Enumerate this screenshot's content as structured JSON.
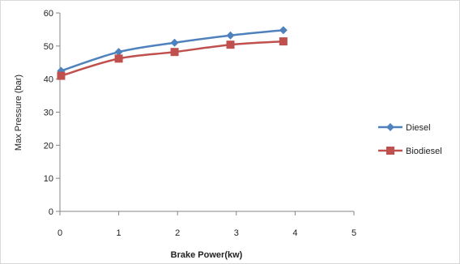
{
  "chart_data": {
    "type": "line",
    "xlabel": "Brake Power(kw)",
    "ylabel": "Max Pressure (bar)",
    "xlim": [
      0,
      5
    ],
    "ylim": [
      0,
      60
    ],
    "x_ticks": [
      "0",
      "1",
      "2",
      "3",
      "4",
      "5"
    ],
    "y_ticks": [
      "0",
      "10",
      "20",
      "30",
      "40",
      "50",
      "60"
    ],
    "grid": false,
    "legend_position": "right",
    "series": [
      {
        "name": "Diesel",
        "color": "#4f81bd",
        "marker": "diamond",
        "x": [
          0.02,
          1.0,
          1.95,
          2.9,
          3.8
        ],
        "y": [
          42.5,
          48.2,
          51.0,
          53.2,
          54.8
        ]
      },
      {
        "name": "Biodiesel",
        "color": "#c0504d",
        "marker": "square",
        "x": [
          0.02,
          1.0,
          1.95,
          2.9,
          3.8
        ],
        "y": [
          41.0,
          46.2,
          48.2,
          50.4,
          51.4
        ]
      }
    ]
  }
}
